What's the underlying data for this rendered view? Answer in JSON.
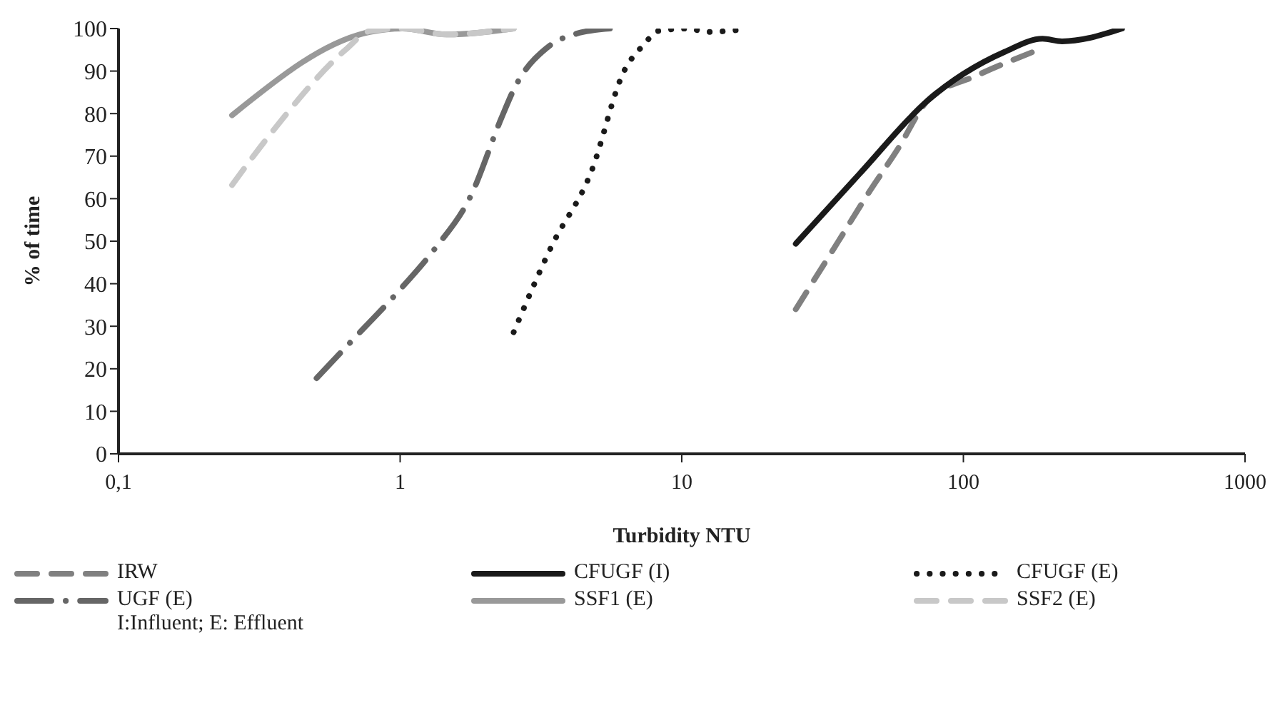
{
  "chart_data": {
    "type": "line",
    "xlabel": "Turbidity NTU",
    "ylabel": "% of time",
    "log": "x",
    "xlim": [
      0.1,
      1000
    ],
    "xticks": [
      {
        "value": 0.1,
        "label": "0,1"
      },
      1,
      10,
      100,
      1000
    ],
    "ylim": [
      0,
      100
    ],
    "yticks": [
      0,
      10,
      20,
      30,
      40,
      50,
      60,
      70,
      80,
      90,
      100
    ],
    "grid": false,
    "legend": "bottom",
    "marker": "none",
    "series": [
      {
        "name": "IRW",
        "color": "#808080",
        "line_style": "dashed",
        "x": [
          25.4,
          36,
          45.7,
          58.9,
          74.5,
          112,
          175
        ],
        "values": [
          34,
          50,
          61,
          72,
          83,
          89,
          94.4
        ]
      },
      {
        "name": "CFUGF (I)",
        "color": "#1a1a1a",
        "line_style": "solid",
        "x": [
          25.4,
          43,
          74.5,
          140,
          191,
          224,
          366
        ],
        "values": [
          49.4,
          66,
          83,
          94.5,
          97.6,
          97,
          100
        ]
      },
      {
        "name": "CFUGF (E)",
        "color": "#1a1a1a",
        "line_style": "dotted",
        "x": [
          2.53,
          3.46,
          4.75,
          6.24,
          7.4,
          8.2,
          10.6,
          12.2,
          16.1
        ],
        "values": [
          28.6,
          49,
          66,
          90,
          96.5,
          99.4,
          100,
          99.2,
          99.7
        ]
      },
      {
        "name": "UGF (E)",
        "color": "#666666",
        "line_style": "dashdot",
        "x": [
          0.505,
          0.69,
          0.98,
          1.32,
          1.78,
          2.29,
          2.53,
          3.4,
          4.23,
          5.56
        ],
        "values": [
          17.8,
          27.3,
          38,
          48,
          60.6,
          79,
          85.6,
          96,
          98.8,
          100
        ]
      },
      {
        "name": "SSF1 (E)",
        "color": "#999999",
        "line_style": "solid",
        "x": [
          0.253,
          0.78,
          1.02,
          1.46,
          2.53
        ],
        "values": [
          79.6,
          99.2,
          100,
          98.6,
          100
        ]
      },
      {
        "name": "SSF2 (E)",
        "color": "#c8c8c8",
        "line_style": "dashed",
        "x": [
          0.253,
          0.354,
          0.64,
          0.78,
          1.02,
          1.46,
          2.53
        ],
        "values": [
          63.2,
          76,
          95,
          99.4,
          100,
          98.6,
          100
        ]
      }
    ],
    "annotations": [
      "I:Influent; E: Effluent"
    ]
  }
}
